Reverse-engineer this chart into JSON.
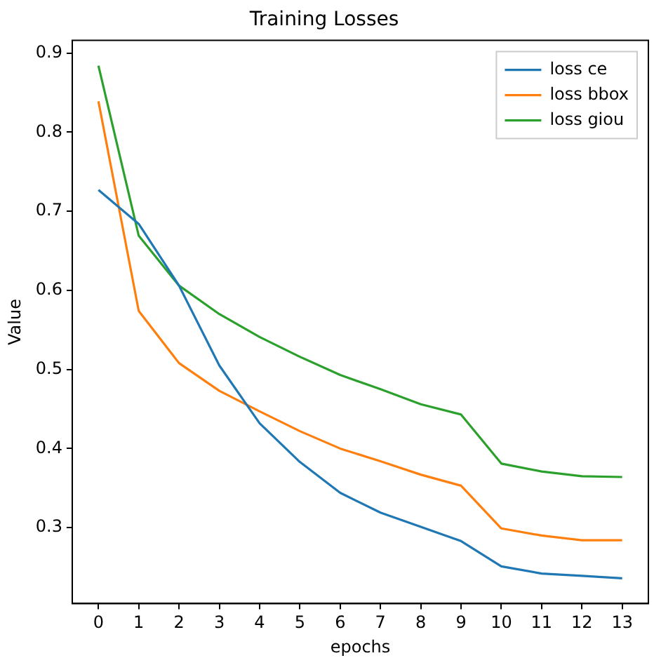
{
  "chart_data": {
    "type": "line",
    "title": "Training Losses",
    "xlabel": "epochs",
    "ylabel": "Value",
    "x": [
      0,
      1,
      2,
      3,
      4,
      5,
      6,
      7,
      8,
      9,
      10,
      11,
      12,
      13
    ],
    "series": [
      {
        "name": "loss ce",
        "color": "#1f77b4",
        "values": [
          0.727,
          0.684,
          0.606,
          0.505,
          0.432,
          0.383,
          0.344,
          0.319,
          0.301,
          0.283,
          0.251,
          0.242,
          0.239,
          0.236
        ]
      },
      {
        "name": "loss bbox",
        "color": "#ff7f0e",
        "values": [
          0.839,
          0.574,
          0.508,
          0.473,
          0.447,
          0.422,
          0.4,
          0.384,
          0.367,
          0.353,
          0.299,
          0.29,
          0.284,
          0.284
        ]
      },
      {
        "name": "loss giou",
        "color": "#2ca02c",
        "values": [
          0.884,
          0.669,
          0.606,
          0.57,
          0.541,
          0.516,
          0.493,
          0.475,
          0.456,
          0.443,
          0.381,
          0.371,
          0.365,
          0.364
        ]
      }
    ],
    "xlim": [
      -0.65,
      13.65
    ],
    "xticks": [
      0,
      1,
      2,
      3,
      4,
      5,
      6,
      7,
      8,
      9,
      10,
      11,
      12,
      13
    ],
    "ylim": [
      0.204,
      0.916
    ],
    "yticks": [
      0.3,
      0.4,
      0.5,
      0.6,
      0.7,
      0.8,
      0.9
    ],
    "grid": false,
    "legend": "top right",
    "marker": "none",
    "line_style": "solid"
  }
}
